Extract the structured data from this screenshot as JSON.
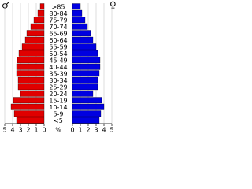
{
  "chart_data": {
    "type": "population-pyramid",
    "categories": [
      ">85",
      "80-84",
      "75-79",
      "70-74",
      "65-69",
      "60-64",
      "55-59",
      "50-54",
      "45-49",
      "40-44",
      "35-39",
      "30-34",
      "25-29",
      "20-24",
      "15-19",
      "10-14",
      "5-9",
      "<5"
    ],
    "series": [
      {
        "name": "♂",
        "color": "#e00000",
        "values": [
          0.5,
          0.8,
          1.3,
          1.7,
          2.2,
          2.4,
          2.8,
          3.2,
          3.4,
          3.5,
          3.5,
          3.3,
          3.3,
          3.0,
          3.9,
          4.2,
          3.8,
          3.5
        ]
      },
      {
        "name": "♀",
        "color": "#0000e0",
        "values": [
          1.0,
          1.2,
          1.6,
          1.9,
          2.3,
          2.6,
          3.0,
          3.2,
          3.5,
          3.5,
          3.4,
          3.2,
          3.2,
          2.6,
          3.7,
          4.0,
          3.6,
          3.4
        ]
      }
    ],
    "x_label": "%",
    "xlim": [
      0,
      5
    ],
    "xticks": [
      0,
      1,
      2,
      3,
      4,
      5
    ]
  }
}
